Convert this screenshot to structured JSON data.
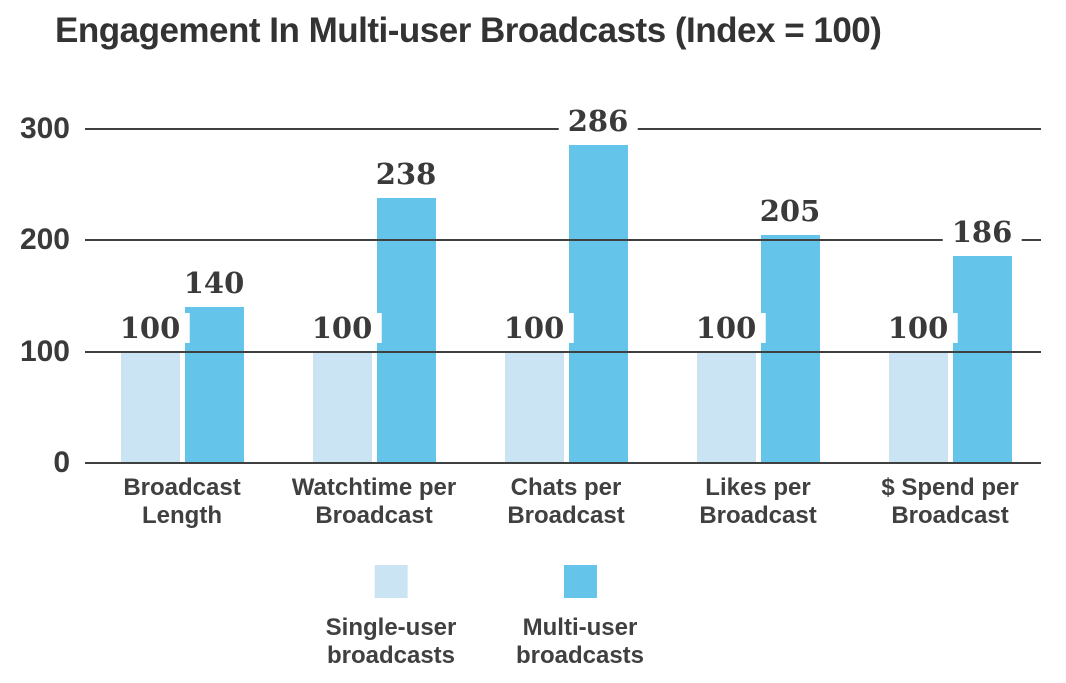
{
  "title": "Engagement In Multi-user Broadcasts (Index = 100)",
  "colors": {
    "single_user": "#cbe4f4",
    "multi_user": "#64c4ea",
    "grid": "#404040",
    "text_dark": "#333333",
    "text_label": "#3a3a3a"
  },
  "chart_data": {
    "type": "bar",
    "title": "Engagement In Multi-user Broadcasts (Index = 100)",
    "categories": [
      "Broadcast\nLength",
      "Watchtime per\nBroadcast",
      "Chats per\nBroadcast",
      "Likes per\nBroadcast",
      "$ Spend per\nBroadcast"
    ],
    "series": [
      {
        "name": "Single-user broadcasts",
        "legend_label": "Single-user\nbroadcasts",
        "color": "#cbe4f4",
        "values": [
          100,
          100,
          100,
          100,
          100
        ]
      },
      {
        "name": "Multi-user broadcasts",
        "legend_label": "Multi-user\nbroadcasts",
        "color": "#64c4ea",
        "values": [
          140,
          238,
          286,
          205,
          186
        ]
      }
    ],
    "data_labels": true,
    "xlabel": "",
    "ylabel": "",
    "y_ticks": [
      0,
      100,
      200,
      300
    ],
    "ylim": [
      0,
      300
    ],
    "grid": "horizontal",
    "legend_position": "bottom"
  }
}
